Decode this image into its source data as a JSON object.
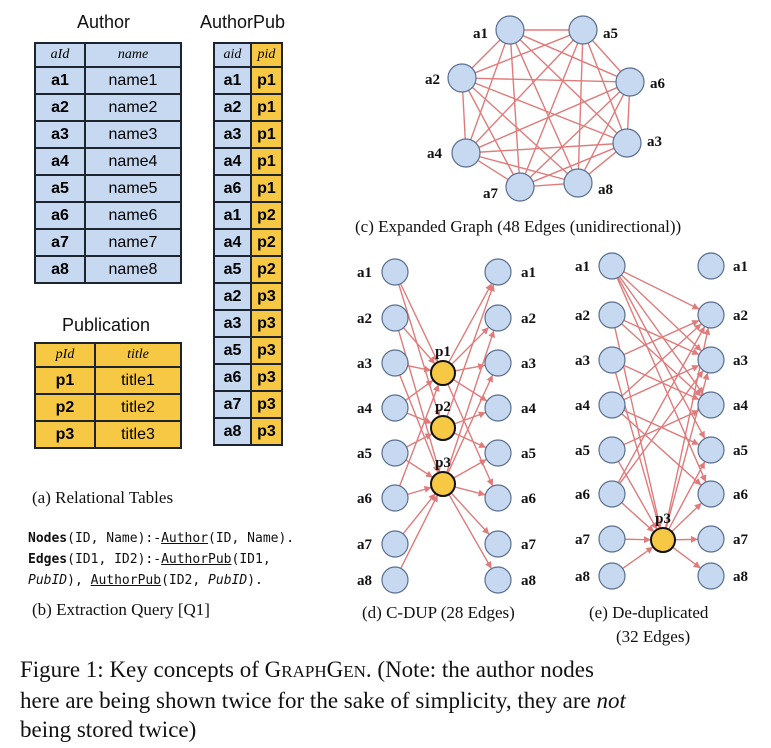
{
  "tables": {
    "author": {
      "title": "Author",
      "headers": [
        "aId",
        "name"
      ],
      "rows": [
        [
          "a1",
          "name1"
        ],
        [
          "a2",
          "name2"
        ],
        [
          "a3",
          "name3"
        ],
        [
          "a4",
          "name4"
        ],
        [
          "a5",
          "name5"
        ],
        [
          "a6",
          "name6"
        ],
        [
          "a7",
          "name7"
        ],
        [
          "a8",
          "name8"
        ]
      ]
    },
    "authorpub": {
      "title": "AuthorPub",
      "headers": [
        "aid",
        "pid"
      ],
      "rows": [
        [
          "a1",
          "p1"
        ],
        [
          "a2",
          "p1"
        ],
        [
          "a3",
          "p1"
        ],
        [
          "a4",
          "p1"
        ],
        [
          "a6",
          "p1"
        ],
        [
          "a1",
          "p2"
        ],
        [
          "a4",
          "p2"
        ],
        [
          "a5",
          "p2"
        ],
        [
          "a2",
          "p3"
        ],
        [
          "a3",
          "p3"
        ],
        [
          "a5",
          "p3"
        ],
        [
          "a6",
          "p3"
        ],
        [
          "a7",
          "p3"
        ],
        [
          "a8",
          "p3"
        ]
      ]
    },
    "publication": {
      "title": "Publication",
      "headers": [
        "pId",
        "title"
      ],
      "rows": [
        [
          "p1",
          "title1"
        ],
        [
          "p2",
          "title2"
        ],
        [
          "p3",
          "title3"
        ]
      ]
    }
  },
  "query": {
    "line1": {
      "kw": "Nodes",
      "a": "(ID, Name):-",
      "rel": "Author",
      "b": "(ID, Name)."
    },
    "line2": {
      "kw": "Edges",
      "a": "(ID1, ID2):-",
      "rel": "AuthorPub",
      "b": "(ID1,"
    },
    "line3": {
      "v": "PubID",
      "a": "), ",
      "rel": "AuthorPub",
      "b": "(ID2, ",
      "v2": "PubID",
      "c": ")."
    }
  },
  "captions": {
    "a": "(a) Relational Tables",
    "b": "(b)  Extraction Query [Q1]",
    "c": "(c) Expanded Graph (48 Edges (unidirectional))",
    "d": "(d)  C-DUP (28 Edges)",
    "e1": "(e) De-duplicated",
    "e2": "(32 Edges)"
  },
  "figure_caption": {
    "line1_pre": "Figure 1:  Key concepts of G",
    "line1_sc1": "RAPH",
    "line1_g": "G",
    "line1_sc2": "EN",
    "line1_post": ". (Note: the author nodes",
    "line2_pre": "here are being shown twice for the sake of simplicity, they are ",
    "line2_em": "not",
    "line3": "being stored twice)"
  },
  "graph_c": {
    "nodes": [
      "a1",
      "a5",
      "a2",
      "a6",
      "a3",
      "a4",
      "a7",
      "a8"
    ]
  },
  "graph_d": {
    "authors": [
      "a1",
      "a2",
      "a3",
      "a4",
      "a5",
      "a6",
      "a7",
      "a8"
    ],
    "pubs": [
      "p1",
      "p2",
      "p3"
    ]
  },
  "graph_e": {
    "authors": [
      "a1",
      "a2",
      "a3",
      "a4",
      "a5",
      "a6",
      "a7",
      "a8"
    ],
    "pubs": [
      "p3"
    ]
  },
  "colors": {
    "edge": "#e07b7b",
    "node_blue": "#c6d9f1",
    "node_gold": "#f7c843",
    "table_blue": "#c6d9f1",
    "table_gold": "#f7c843"
  }
}
